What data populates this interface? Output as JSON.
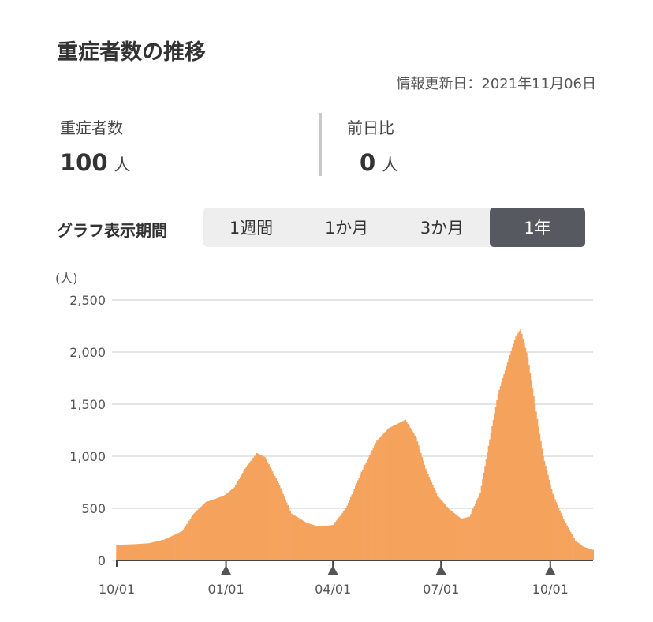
{
  "header": {
    "title": "重症者数の推移",
    "updated": "情報更新日：2021年11月06日"
  },
  "stats": [
    {
      "label": "重症者数",
      "value": "100",
      "unit": "人"
    },
    {
      "label": "前日比",
      "value": "0",
      "unit": "人"
    }
  ],
  "period": {
    "label": "グラフ表示期間",
    "options": [
      "1週間",
      "1か月",
      "3か月",
      "1年"
    ],
    "selected": "1年"
  },
  "colors": {
    "bar": "#f5a25d",
    "bar_edge": "#e8873a",
    "active": "#565a60"
  },
  "chart_data": {
    "type": "bar",
    "title": "",
    "xlabel": "",
    "ylabel": "(人)",
    "ylim": [
      0,
      2500
    ],
    "yticks": [
      0,
      500,
      1000,
      1500,
      2000,
      2500
    ],
    "ytick_labels": [
      "0",
      "500",
      "1,000",
      "1,500",
      "2,000",
      "2,500"
    ],
    "xtick_labels": [
      "10/01",
      "01/01",
      "04/01",
      "07/01",
      "10/01"
    ],
    "marker_months": [
      "01/01",
      "04/01",
      "07/01",
      "10/01"
    ],
    "start_date": "2020-10-01",
    "end_date": "2021-11-06",
    "keypoints": [
      [
        "2020-10-01",
        150
      ],
      [
        "2020-10-15",
        155
      ],
      [
        "2020-10-28",
        165
      ],
      [
        "2020-11-10",
        200
      ],
      [
        "2020-11-25",
        280
      ],
      [
        "2020-12-05",
        450
      ],
      [
        "2020-12-15",
        560
      ],
      [
        "2020-12-30",
        620
      ],
      [
        "2021-01-08",
        700
      ],
      [
        "2021-01-18",
        900
      ],
      [
        "2021-01-27",
        1030
      ],
      [
        "2021-02-03",
        990
      ],
      [
        "2021-02-15",
        720
      ],
      [
        "2021-02-25",
        450
      ],
      [
        "2021-03-10",
        360
      ],
      [
        "2021-03-20",
        325
      ],
      [
        "2021-04-01",
        340
      ],
      [
        "2021-04-12",
        500
      ],
      [
        "2021-04-25",
        850
      ],
      [
        "2021-05-08",
        1150
      ],
      [
        "2021-05-18",
        1270
      ],
      [
        "2021-05-25",
        1310
      ],
      [
        "2021-06-01",
        1350
      ],
      [
        "2021-06-10",
        1180
      ],
      [
        "2021-06-18",
        880
      ],
      [
        "2021-06-28",
        620
      ],
      [
        "2021-07-08",
        490
      ],
      [
        "2021-07-18",
        400
      ],
      [
        "2021-07-25",
        420
      ],
      [
        "2021-08-03",
        650
      ],
      [
        "2021-08-10",
        1100
      ],
      [
        "2021-08-18",
        1600
      ],
      [
        "2021-08-26",
        1900
      ],
      [
        "2021-09-02",
        2150
      ],
      [
        "2021-09-06",
        2220
      ],
      [
        "2021-09-12",
        1950
      ],
      [
        "2021-09-18",
        1500
      ],
      [
        "2021-09-25",
        1000
      ],
      [
        "2021-10-03",
        640
      ],
      [
        "2021-10-12",
        400
      ],
      [
        "2021-10-22",
        190
      ],
      [
        "2021-10-29",
        130
      ],
      [
        "2021-11-06",
        100
      ]
    ]
  }
}
